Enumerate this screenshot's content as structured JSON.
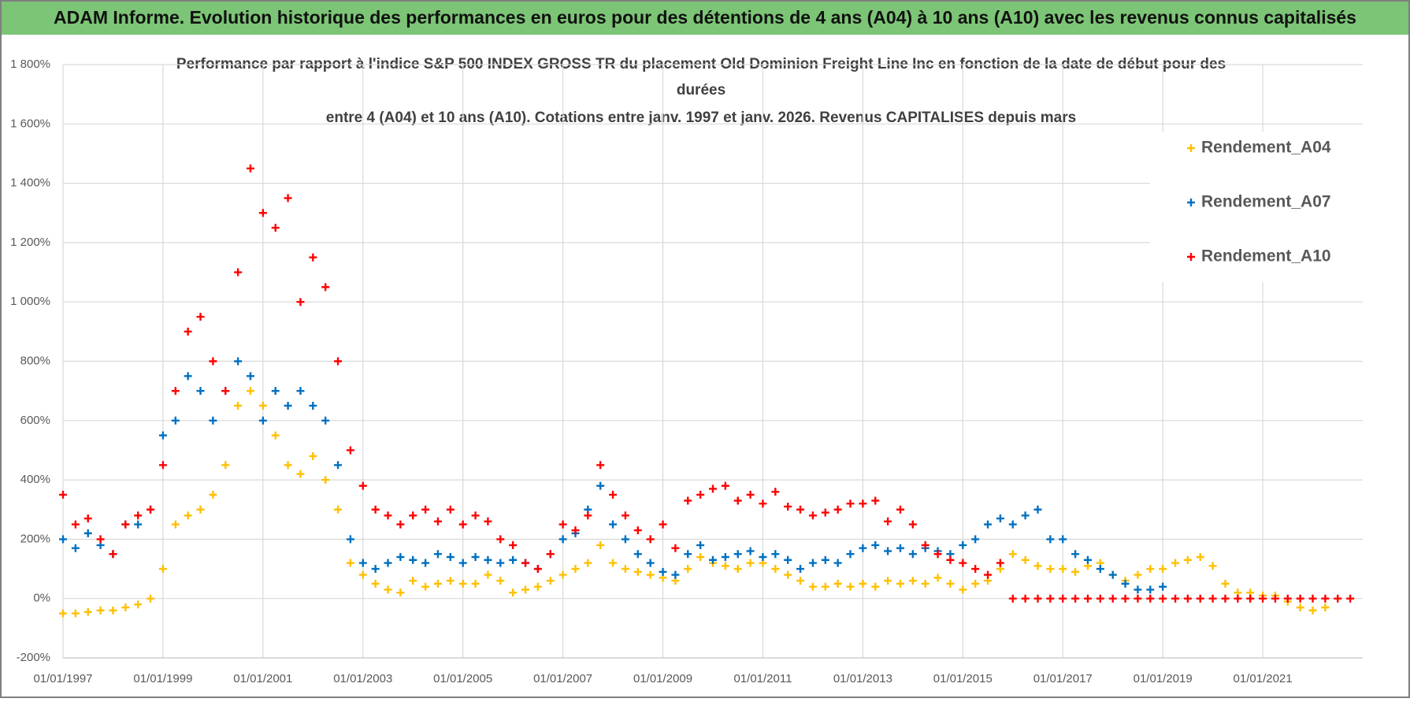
{
  "banner": "ADAM Informe. Evolution historique des performances en euros pour des détentions de 4 ans (A04) à 10 ans (A10) avec les revenus connus capitalisés",
  "chart_data": {
    "type": "scatter",
    "title": [
      "Performance par rapport à l'indice S&P 500 INDEX GROSS TR  du placement Old Dominion Freight Line Inc en fonction de la date de début pour des",
      "durées",
      "entre 4 (A04) et 10 ans (A10). Cotations entre janv. 1997 et janv. 2026. Revenus CAPITALISES depuis mars"
    ],
    "x": [
      "01/01/1997",
      "01/04/1997",
      "01/07/1997",
      "01/10/1997",
      "01/01/1998",
      "01/04/1998",
      "01/07/1998",
      "01/10/1998",
      "01/01/1999",
      "01/04/1999",
      "01/07/1999",
      "01/10/1999",
      "01/01/2000",
      "01/04/2000",
      "01/07/2000",
      "01/10/2000",
      "01/01/2001",
      "01/04/2001",
      "01/07/2001",
      "01/10/2001",
      "01/01/2002",
      "01/04/2002",
      "01/07/2002",
      "01/10/2002",
      "01/01/2003",
      "01/04/2003",
      "01/07/2003",
      "01/10/2003",
      "01/01/2004",
      "01/04/2004",
      "01/07/2004",
      "01/10/2004",
      "01/01/2005",
      "01/04/2005",
      "01/07/2005",
      "01/10/2005",
      "01/01/2006",
      "01/04/2006",
      "01/07/2006",
      "01/10/2006",
      "01/01/2007",
      "01/04/2007",
      "01/07/2007",
      "01/10/2007",
      "01/01/2008",
      "01/04/2008",
      "01/07/2008",
      "01/10/2008",
      "01/01/2009",
      "01/04/2009",
      "01/07/2009",
      "01/10/2009",
      "01/01/2010",
      "01/04/2010",
      "01/07/2010",
      "01/10/2010",
      "01/01/2011",
      "01/04/2011",
      "01/07/2011",
      "01/10/2011",
      "01/01/2012",
      "01/04/2012",
      "01/07/2012",
      "01/10/2012",
      "01/01/2013",
      "01/04/2013",
      "01/07/2013",
      "01/10/2013",
      "01/01/2014",
      "01/04/2014",
      "01/07/2014",
      "01/10/2014",
      "01/01/2015",
      "01/04/2015",
      "01/07/2015",
      "01/10/2015",
      "01/01/2016",
      "01/04/2016",
      "01/07/2016",
      "01/10/2016",
      "01/01/2017",
      "01/04/2017",
      "01/07/2017",
      "01/10/2017",
      "01/01/2018",
      "01/04/2018",
      "01/07/2018",
      "01/10/2018",
      "01/01/2019",
      "01/04/2019",
      "01/07/2019",
      "01/10/2019",
      "01/01/2020",
      "01/04/2020",
      "01/07/2020",
      "01/10/2020",
      "01/01/2021",
      "01/04/2021",
      "01/07/2021",
      "01/10/2021",
      "01/01/2022",
      "01/04/2022",
      "01/07/2022",
      "01/10/2022"
    ],
    "series": [
      {
        "name": "Rendement_A04",
        "color": "#ffc000",
        "values": [
          -50,
          -50,
          -45,
          -40,
          -40,
          -30,
          -20,
          0,
          100,
          250,
          280,
          300,
          350,
          450,
          650,
          700,
          650,
          550,
          450,
          420,
          480,
          400,
          300,
          120,
          80,
          50,
          30,
          20,
          60,
          40,
          50,
          60,
          50,
          50,
          80,
          60,
          20,
          30,
          40,
          60,
          80,
          100,
          120,
          180,
          120,
          100,
          90,
          80,
          70,
          60,
          100,
          140,
          120,
          110,
          100,
          120,
          120,
          100,
          80,
          60,
          40,
          40,
          50,
          40,
          50,
          40,
          60,
          50,
          60,
          50,
          70,
          50,
          30,
          50,
          60,
          100,
          150,
          130,
          110,
          100,
          100,
          90,
          110,
          120,
          80,
          60,
          80,
          100,
          100,
          120,
          130,
          140,
          110,
          50,
          20,
          20,
          10,
          10,
          -10,
          -30,
          -40,
          -30,
          null,
          null
        ]
      },
      {
        "name": "Rendement_A07",
        "color": "#0070c0",
        "values": [
          200,
          170,
          220,
          180,
          150,
          250,
          250,
          300,
          550,
          600,
          750,
          700,
          600,
          700,
          800,
          750,
          600,
          700,
          650,
          700,
          650,
          600,
          450,
          200,
          120,
          100,
          120,
          140,
          130,
          120,
          150,
          140,
          120,
          140,
          130,
          120,
          130,
          120,
          100,
          150,
          200,
          220,
          300,
          380,
          250,
          200,
          150,
          120,
          90,
          80,
          150,
          180,
          130,
          140,
          150,
          160,
          140,
          150,
          130,
          100,
          120,
          130,
          120,
          150,
          170,
          180,
          160,
          170,
          150,
          170,
          160,
          150,
          180,
          200,
          250,
          270,
          250,
          280,
          300,
          200,
          200,
          150,
          130,
          100,
          80,
          50,
          30,
          30,
          40,
          null,
          null,
          null,
          null,
          null,
          null,
          null,
          null,
          null,
          null,
          null,
          null,
          null,
          null,
          null
        ]
      },
      {
        "name": "Rendement_A10",
        "color": "#ff0000",
        "values": [
          350,
          250,
          270,
          200,
          150,
          250,
          280,
          300,
          450,
          700,
          900,
          950,
          800,
          700,
          1100,
          1450,
          1300,
          1250,
          1350,
          1000,
          1150,
          1050,
          800,
          500,
          380,
          300,
          280,
          250,
          280,
          300,
          260,
          300,
          250,
          280,
          260,
          200,
          180,
          120,
          100,
          150,
          250,
          230,
          280,
          450,
          350,
          280,
          230,
          200,
          250,
          170,
          330,
          350,
          370,
          380,
          330,
          350,
          320,
          360,
          310,
          300,
          280,
          290,
          300,
          320,
          320,
          330,
          260,
          300,
          250,
          180,
          150,
          130,
          120,
          100,
          80,
          120,
          0,
          0,
          0,
          0,
          0,
          0,
          0,
          0,
          0,
          0,
          0,
          0,
          0,
          0,
          0,
          0,
          0,
          0,
          0,
          0,
          0,
          0,
          0,
          0,
          0,
          0,
          0,
          0
        ]
      }
    ],
    "xlim": [
      "01/01/1997",
      "01/01/2023"
    ],
    "xticks": [
      "01/01/1997",
      "01/01/1999",
      "01/01/2001",
      "01/01/2003",
      "01/01/2005",
      "01/01/2007",
      "01/01/2009",
      "01/01/2011",
      "01/01/2013",
      "01/01/2015",
      "01/01/2017",
      "01/01/2019",
      "01/01/2021"
    ],
    "ylim": [
      -200,
      1800
    ],
    "yticks": [
      {
        "value": -200,
        "label": "-200%"
      },
      {
        "value": 0,
        "label": "0%"
      },
      {
        "value": 200,
        "label": "200%"
      },
      {
        "value": 400,
        "label": "400%"
      },
      {
        "value": 600,
        "label": "600%"
      },
      {
        "value": 800,
        "label": "800%"
      },
      {
        "value": 1000,
        "label": "1 000%"
      },
      {
        "value": 1200,
        "label": "1 200%"
      },
      {
        "value": 1400,
        "label": "1 400%"
      },
      {
        "value": 1600,
        "label": "1 600%"
      },
      {
        "value": 1800,
        "label": "1 800%"
      }
    ],
    "grid": true,
    "legend": "upper right"
  }
}
